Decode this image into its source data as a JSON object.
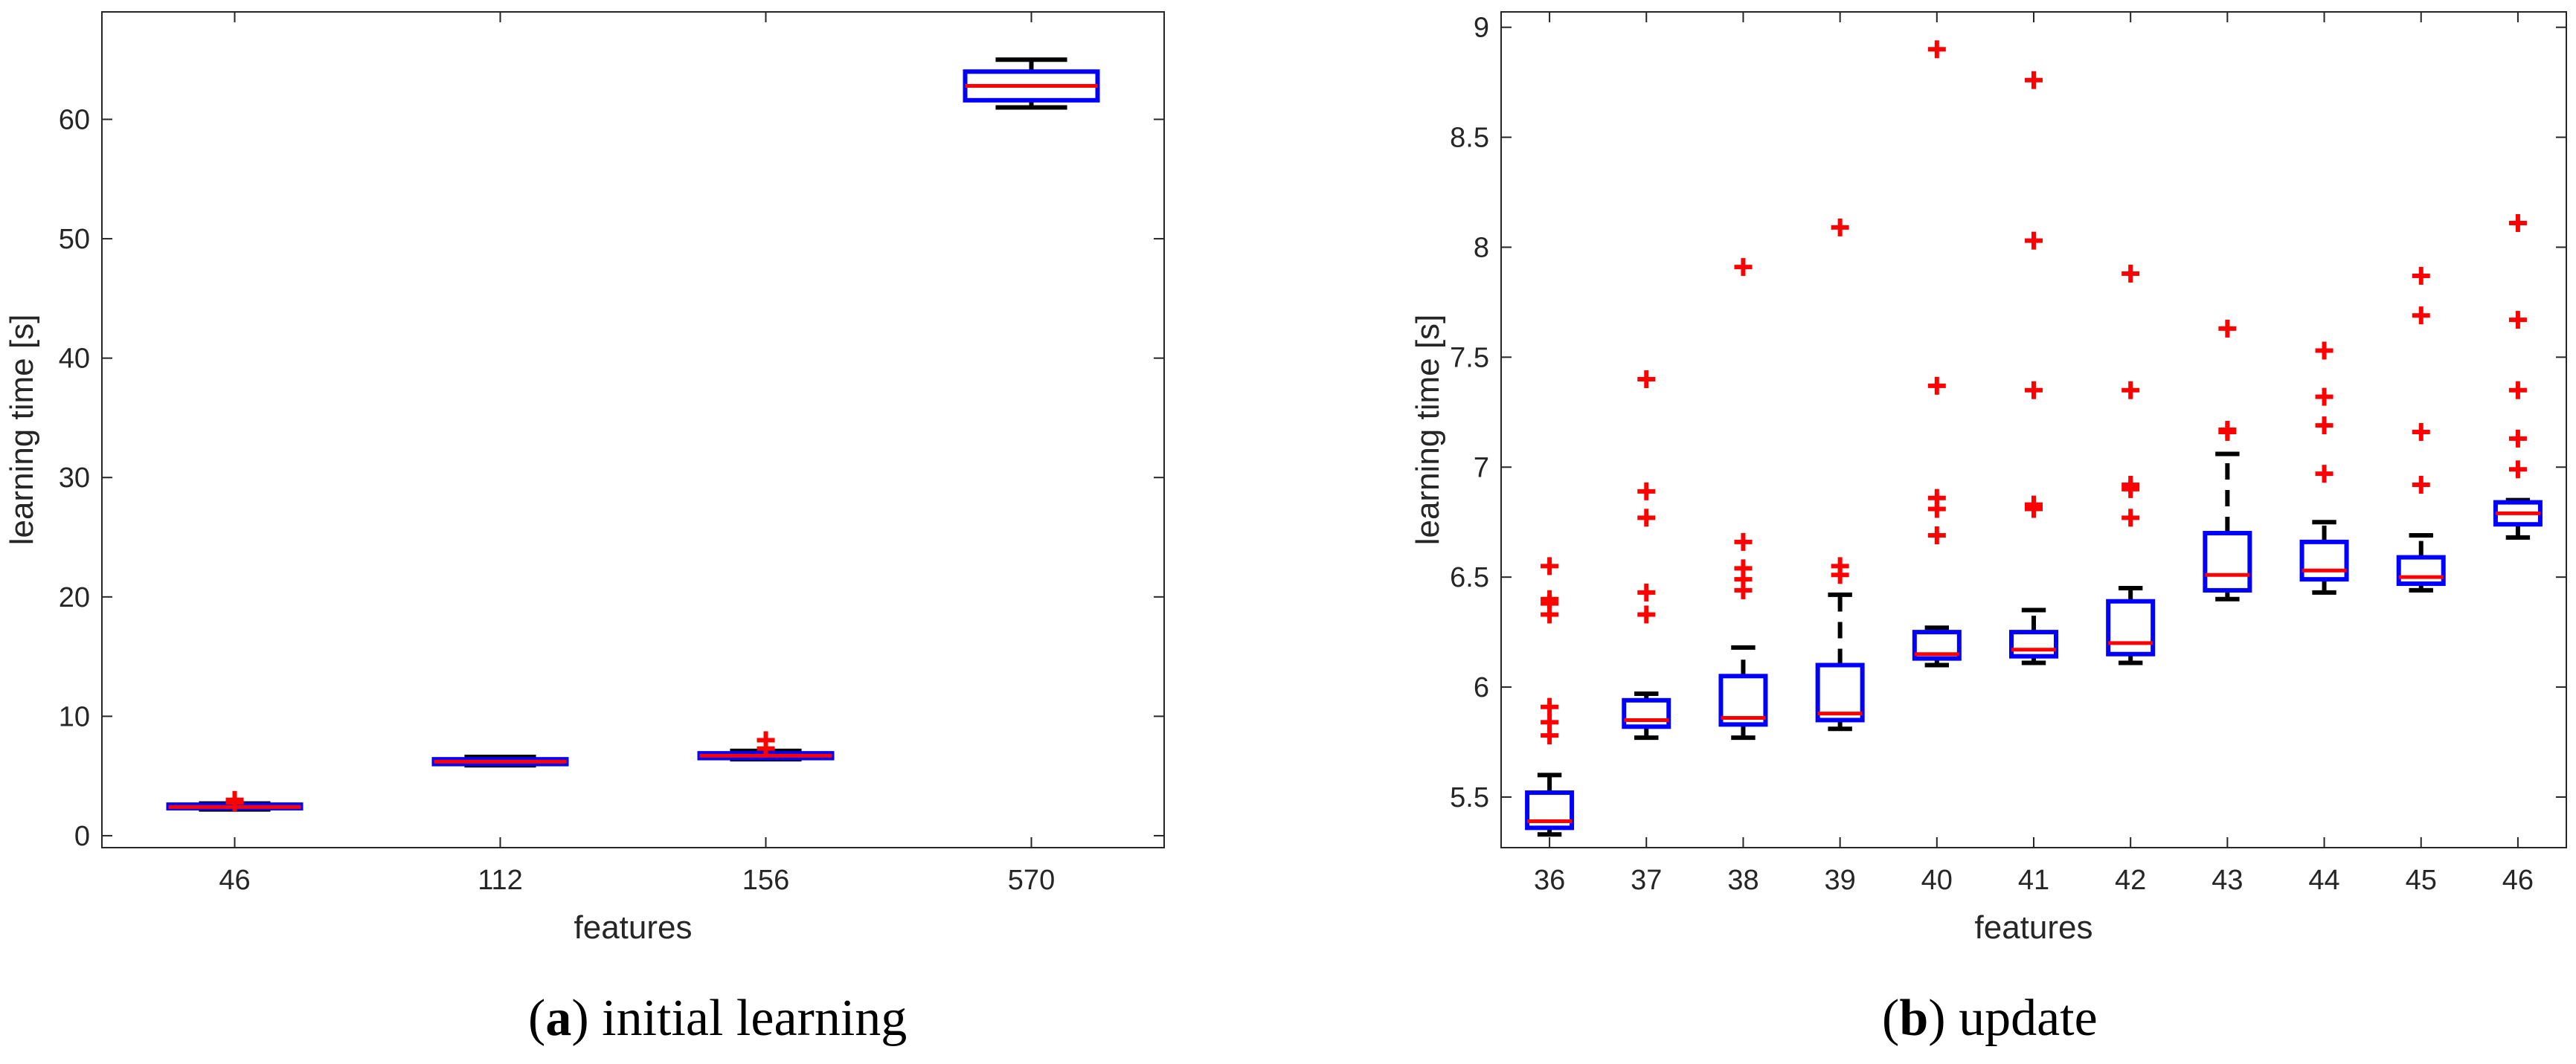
{
  "chart_data": [
    {
      "type": "boxplot",
      "xlabel": "features",
      "ylabel": "learning time [s]",
      "categories": [
        "46",
        "112",
        "156",
        "570"
      ],
      "ylim": [
        -1,
        69
      ],
      "yticks": [
        "0",
        "10",
        "20",
        "30",
        "40",
        "50",
        "60"
      ],
      "boxes": [
        {
          "label": "46",
          "whisker_low": 2.2,
          "q1": 2.3,
          "median": 2.4,
          "q3": 2.6,
          "whisker_high": 2.7,
          "outliers": [
            3.0,
            2.8
          ]
        },
        {
          "label": "112",
          "whisker_low": 5.9,
          "q1": 6.0,
          "median": 6.2,
          "q3": 6.4,
          "whisker_high": 6.6,
          "outliers": []
        },
        {
          "label": "156",
          "whisker_low": 6.4,
          "q1": 6.5,
          "median": 6.7,
          "q3": 6.9,
          "whisker_high": 7.1,
          "outliers": [
            8.0,
            7.3
          ]
        },
        {
          "label": "570",
          "whisker_low": 61.0,
          "q1": 61.6,
          "median": 62.8,
          "q3": 64.0,
          "whisker_high": 65.0,
          "outliers": []
        }
      ],
      "caption_tag": "a",
      "caption_text": "initial learning"
    },
    {
      "type": "boxplot",
      "xlabel": "features",
      "ylabel": "learning time [s]",
      "categories": [
        "36",
        "37",
        "38",
        "39",
        "40",
        "41",
        "42",
        "43",
        "44",
        "45",
        "46"
      ],
      "ylim": [
        5.27,
        9.07
      ],
      "yticks": [
        "5.5",
        "6",
        "6.5",
        "7",
        "7.5",
        "8",
        "8.5",
        "9"
      ],
      "boxes": [
        {
          "label": "36",
          "whisker_low": 5.33,
          "q1": 5.36,
          "median": 5.39,
          "q3": 5.52,
          "whisker_high": 5.6,
          "outliers": [
            5.78,
            5.84,
            5.91,
            6.33,
            6.38,
            6.4,
            6.55
          ]
        },
        {
          "label": "37",
          "whisker_low": 5.77,
          "q1": 5.82,
          "median": 5.85,
          "q3": 5.94,
          "whisker_high": 5.97,
          "outliers": [
            6.33,
            6.43,
            6.77,
            6.89,
            7.4
          ]
        },
        {
          "label": "38",
          "whisker_low": 5.77,
          "q1": 5.83,
          "median": 5.86,
          "q3": 6.05,
          "whisker_high": 6.18,
          "outliers": [
            6.44,
            6.49,
            6.54,
            6.66,
            7.91
          ]
        },
        {
          "label": "39",
          "whisker_low": 5.81,
          "q1": 5.85,
          "median": 5.88,
          "q3": 6.1,
          "whisker_high": 6.42,
          "outliers": [
            6.51,
            6.55,
            8.09
          ]
        },
        {
          "label": "40",
          "whisker_low": 6.1,
          "q1": 6.13,
          "median": 6.15,
          "q3": 6.25,
          "whisker_high": 6.27,
          "outliers": [
            6.69,
            6.81,
            6.86,
            7.37,
            8.9
          ]
        },
        {
          "label": "41",
          "whisker_low": 6.11,
          "q1": 6.14,
          "median": 6.17,
          "q3": 6.25,
          "whisker_high": 6.35,
          "outliers": [
            6.81,
            6.83,
            7.35,
            8.03,
            8.76
          ]
        },
        {
          "label": "42",
          "whisker_low": 6.11,
          "q1": 6.15,
          "median": 6.2,
          "q3": 6.39,
          "whisker_high": 6.45,
          "outliers": [
            6.77,
            6.9,
            6.92,
            7.35,
            7.88
          ]
        },
        {
          "label": "43",
          "whisker_low": 6.4,
          "q1": 6.44,
          "median": 6.51,
          "q3": 6.7,
          "whisker_high": 7.06,
          "outliers": [
            7.16,
            7.17,
            7.63
          ]
        },
        {
          "label": "44",
          "whisker_low": 6.43,
          "q1": 6.49,
          "median": 6.53,
          "q3": 6.66,
          "whisker_high": 6.75,
          "outliers": [
            6.97,
            7.19,
            7.32,
            7.53
          ]
        },
        {
          "label": "45",
          "whisker_low": 6.44,
          "q1": 6.47,
          "median": 6.5,
          "q3": 6.59,
          "whisker_high": 6.69,
          "outliers": [
            6.92,
            7.16,
            7.69,
            7.87
          ]
        },
        {
          "label": "46",
          "whisker_low": 6.68,
          "q1": 6.74,
          "median": 6.79,
          "q3": 6.84,
          "whisker_high": 6.85,
          "outliers": [
            6.99,
            7.13,
            7.35,
            7.67,
            8.11
          ]
        }
      ],
      "caption_tag": "b",
      "caption_text": "update"
    }
  ]
}
